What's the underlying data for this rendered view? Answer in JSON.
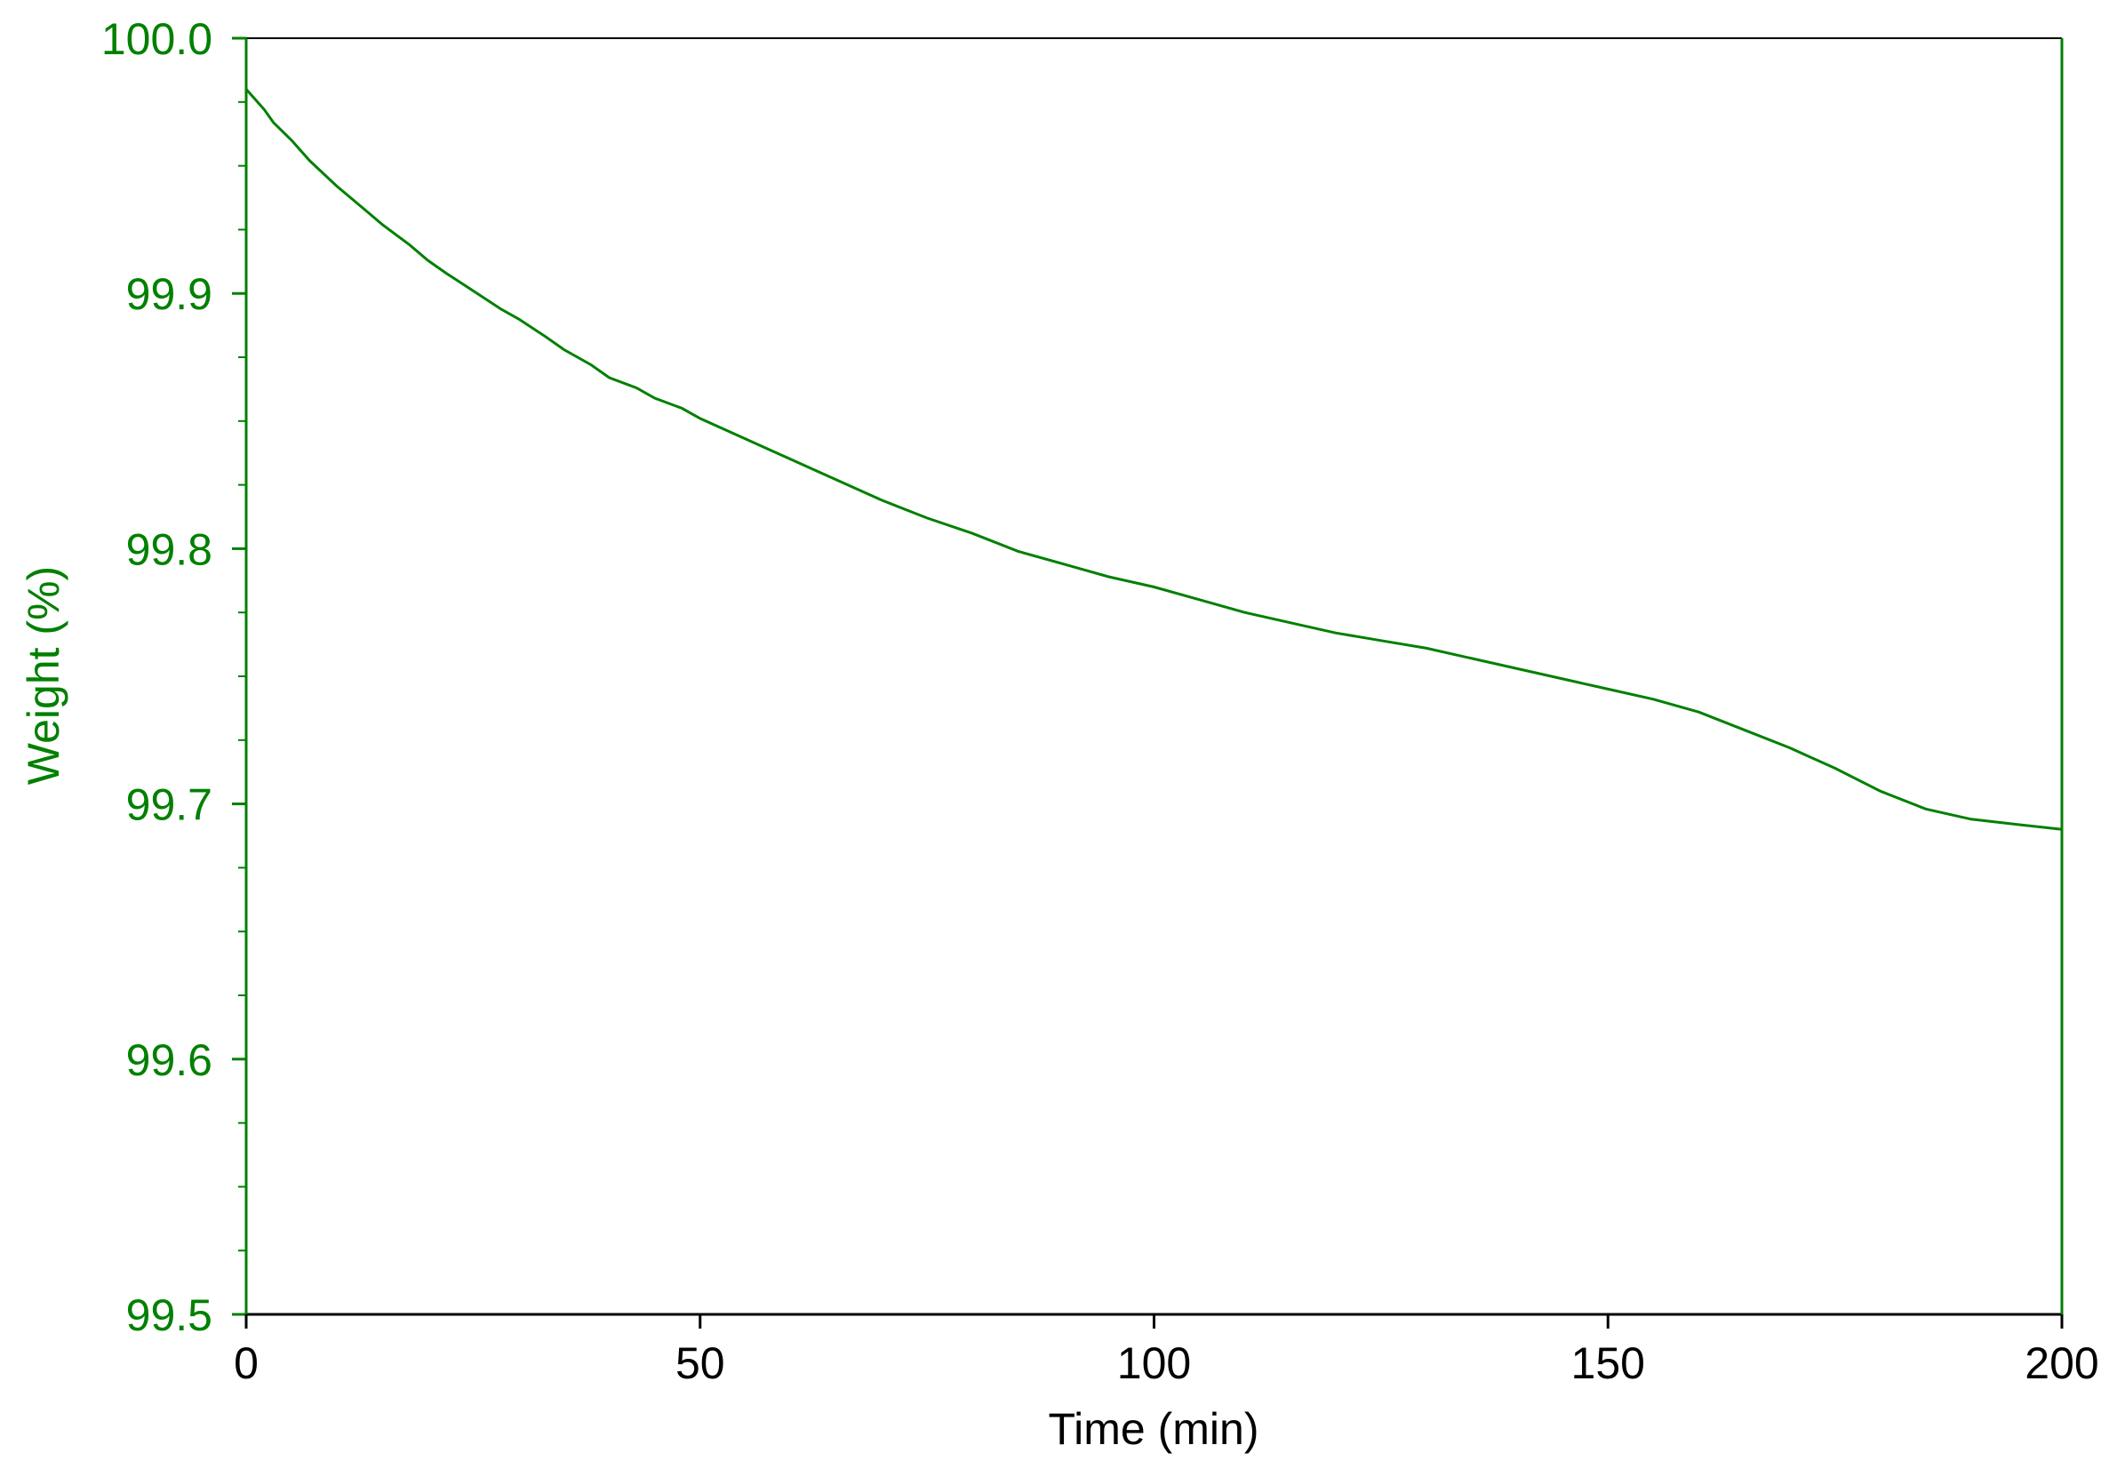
{
  "chart_data": {
    "type": "line",
    "title": "",
    "xlabel": "Time (min)",
    "ylabel": "Weight (%)",
    "xlim": [
      0,
      200
    ],
    "ylim": [
      99.5,
      100.0
    ],
    "x_ticks": [
      "0",
      "50",
      "100",
      "150",
      "200"
    ],
    "y_ticks": [
      "99.5",
      "99.6",
      "99.7",
      "99.8",
      "99.9",
      "100.0"
    ],
    "grid": false,
    "legend": "none",
    "colors": {
      "series": "#008000",
      "y_axis": "#008000",
      "x_axis": "#000000"
    },
    "series": [
      {
        "x": [
          0,
          1,
          2,
          3,
          5,
          7,
          10,
          13,
          15,
          18,
          20,
          22,
          25,
          28,
          30,
          33,
          35,
          38,
          40,
          43,
          45,
          48,
          50,
          55,
          60,
          65,
          70,
          75,
          80,
          85,
          90,
          95,
          100,
          105,
          110,
          115,
          120,
          125,
          130,
          135,
          140,
          145,
          150,
          155,
          160,
          165,
          170,
          175,
          180,
          185,
          190,
          195,
          200
        ],
        "y": [
          99.98,
          99.976,
          99.972,
          99.967,
          99.96,
          99.952,
          99.942,
          99.933,
          99.927,
          99.919,
          99.913,
          99.908,
          99.901,
          99.894,
          99.89,
          99.883,
          99.878,
          99.872,
          99.867,
          99.863,
          99.859,
          99.855,
          99.851,
          99.843,
          99.835,
          99.827,
          99.819,
          99.812,
          99.806,
          99.799,
          99.794,
          99.789,
          99.785,
          99.78,
          99.775,
          99.771,
          99.767,
          99.764,
          99.761,
          99.757,
          99.753,
          99.749,
          99.745,
          99.741,
          99.736,
          99.729,
          99.722,
          99.714,
          99.705,
          99.698,
          99.694,
          99.692,
          99.69
        ]
      }
    ]
  }
}
